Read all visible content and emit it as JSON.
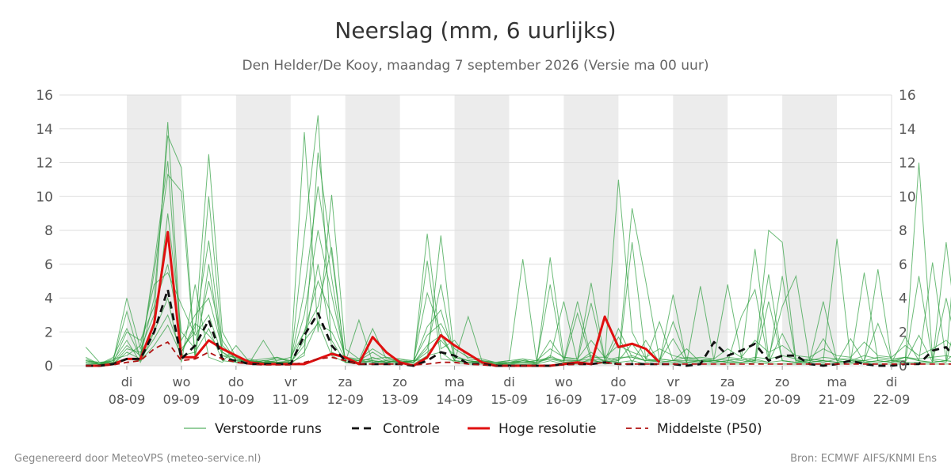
{
  "chart_data": {
    "type": "line",
    "title": "Neerslag (mm, 6 uurlijks)",
    "subtitle": "Den Helder/De Kooy, maandag  7 september 2026 (Versie ma 00 uur)",
    "ylim": [
      0,
      16
    ],
    "yticks": [
      0,
      2,
      4,
      6,
      8,
      10,
      12,
      14,
      16
    ],
    "x_step_label": "6 uur",
    "x_ticks": [
      {
        "day": "di",
        "date": "08-09"
      },
      {
        "day": "wo",
        "date": "09-09"
      },
      {
        "day": "do",
        "date": "10-09"
      },
      {
        "day": "vr",
        "date": "11-09"
      },
      {
        "day": "za",
        "date": "12-09"
      },
      {
        "day": "zo",
        "date": "13-09"
      },
      {
        "day": "ma",
        "date": "14-09"
      },
      {
        "day": "di",
        "date": "15-09"
      },
      {
        "day": "wo",
        "date": "16-09"
      },
      {
        "day": "do",
        "date": "17-09"
      },
      {
        "day": "vr",
        "date": "18-09"
      },
      {
        "day": "za",
        "date": "19-09"
      },
      {
        "day": "zo",
        "date": "20-09"
      },
      {
        "day": "ma",
        "date": "21-09"
      },
      {
        "day": "di",
        "date": "22-09"
      }
    ],
    "x_start": "2026-09-07 06:00",
    "x_end": "2026-09-22 00:00",
    "shaded_days": [
      "08-09",
      "10-09",
      "12-09",
      "14-09",
      "16-09",
      "18-09",
      "20-09"
    ],
    "grid": true,
    "legend_position": "bottom",
    "series": [
      {
        "name": "Hoge resolutie",
        "color": "#e01010",
        "style": "solid",
        "values": [
          0,
          0,
          0.1,
          0.4,
          0.4,
          2.5,
          7.9,
          0.5,
          0.5,
          1.5,
          1.0,
          0.6,
          0.2,
          0.1,
          0.1,
          0.1,
          0.1,
          0.4,
          0.7,
          0.5,
          0.1,
          1.7,
          0.8,
          0.2,
          0,
          0.5,
          1.8,
          1.2,
          0.7,
          0.2,
          0,
          0,
          0,
          0,
          0,
          0.1,
          0.2,
          0.1,
          2.9,
          1.1,
          1.3,
          1.0,
          0.2
        ]
      },
      {
        "name": "Controle",
        "color": "#111111",
        "style": "dashed",
        "values": [
          0,
          0,
          0.1,
          0.4,
          0.4,
          2.0,
          4.5,
          0.4,
          1.2,
          2.7,
          0.4,
          0.3,
          0.1,
          0.1,
          0.1,
          0.1,
          1.8,
          3.1,
          1.2,
          0.3,
          0.1,
          0.1,
          0.1,
          0.1,
          0,
          0.3,
          0.8,
          0.6,
          0.1,
          0.1,
          0,
          0,
          0,
          0,
          0,
          0.1,
          0.1,
          0.1,
          0.2,
          0.1,
          0.1,
          0.1,
          0.1,
          0.1,
          0,
          0.1,
          1.4,
          0.6,
          0.9,
          1.3,
          0.3,
          0.6,
          0.6,
          0.1,
          0,
          0.1,
          0.3,
          0.1,
          0,
          0,
          0.1,
          0.1,
          0.9,
          1.1,
          0.1,
          0,
          0,
          0,
          0.1
        ]
      },
      {
        "name": "Middelste (P50)",
        "color": "#b01010",
        "style": "dashed",
        "values": [
          0,
          0,
          0.05,
          0.2,
          0.3,
          1.0,
          1.4,
          0.3,
          0.4,
          0.8,
          0.4,
          0.2,
          0.1,
          0.05,
          0.05,
          0.05,
          0.2,
          0.4,
          0.5,
          0.3,
          0.1,
          0.1,
          0.1,
          0.1,
          0.05,
          0.1,
          0.2,
          0.2,
          0.1,
          0.05,
          0,
          0,
          0,
          0,
          0,
          0.05,
          0.1,
          0.1,
          0.2,
          0.1,
          0.1,
          0.1,
          0.1,
          0.1,
          0.1,
          0.1,
          0.1,
          0.1,
          0.1,
          0.1,
          0.1,
          0.1,
          0.1,
          0.1,
          0.1,
          0.1,
          0.1,
          0.1,
          0.1,
          0.1,
          0.1,
          0.1,
          0.1,
          0.1,
          0.1,
          0.1,
          0.1,
          0.2,
          0.1
        ]
      },
      {
        "name": "Verstoorde runs",
        "color": "#2e9e3e",
        "style": "thin",
        "ensemble": [
          [
            1.1,
            0.2,
            0.3,
            4.0,
            1.0,
            3.0,
            14.4,
            1.0,
            2.0,
            12.5,
            2.0,
            0.5,
            0.3,
            0.2,
            0.5,
            0.3,
            13.8,
            2.0,
            10.1,
            1.0,
            0.4,
            0.3,
            0.2,
            0.3,
            0.2,
            7.8,
            1.0,
            1.5,
            0.4,
            0.3,
            0.1,
            0.2,
            0.4,
            0.1,
            6.4,
            0.5,
            0.4,
            4.9,
            0.4,
            11.0,
            2.0,
            0.4,
            0.3,
            2.6,
            0.4,
            0.3,
            0.4,
            4.8,
            0.5,
            0.3,
            8.0,
            7.3,
            0.3,
            0.4,
            0.3,
            7.5,
            0.3,
            0.3,
            5.7,
            0.3,
            0.3,
            12.0,
            0.4,
            0.3,
            10.3,
            0.3,
            9.0,
            12.7,
            0.6
          ],
          [
            0.3,
            0.1,
            0.5,
            2.2,
            0.5,
            4.0,
            13.6,
            11.7,
            0.5,
            10.0,
            1.2,
            0.4,
            0.2,
            0.3,
            0.2,
            0.2,
            7.7,
            14.8,
            0.8,
            0.5,
            0.3,
            0.4,
            0.5,
            0.2,
            0.3,
            0.4,
            7.7,
            0.5,
            0.3,
            0.2,
            0.2,
            0.1,
            0.3,
            0.2,
            0.5,
            0.3,
            3.8,
            0.5,
            0.5,
            0.3,
            9.3,
            5.0,
            0.4,
            0.3,
            0.5,
            0.4,
            0.3,
            0.5,
            0.4,
            6.9,
            0.5,
            3.5,
            5.3,
            0.3,
            0.2,
            0.4,
            0.4,
            0.3,
            0.5,
            0.4,
            0.5,
            0.3,
            0.2,
            7.3,
            0.5,
            0.4,
            0.3,
            7.8,
            13.7
          ],
          [
            0.4,
            0.1,
            0.2,
            1.2,
            0.6,
            5.5,
            11.3,
            10.3,
            0.4,
            6.0,
            0.6,
            0.3,
            0.3,
            0.4,
            0.5,
            0.2,
            0.6,
            12.6,
            6.6,
            0.3,
            0.2,
            0.3,
            0.2,
            0.4,
            0.2,
            6.2,
            0.4,
            0.3,
            2.9,
            0.3,
            0.2,
            0.3,
            6.3,
            0.3,
            0.4,
            0.2,
            0.3,
            0.4,
            0.3,
            0.2,
            7.3,
            0.4,
            0.2,
            4.2,
            0.2,
            0.3,
            0.2,
            0.3,
            0.4,
            0.2,
            3.8,
            0.3,
            0.2,
            0.4,
            0.3,
            0.2,
            0.3,
            0.2,
            0.3,
            0.2,
            0.5,
            0.3,
            6.1,
            0.3,
            0.2,
            0.3,
            6.9,
            0.3,
            7.5
          ],
          [
            0.2,
            0.1,
            0.3,
            3.2,
            0.4,
            6.0,
            12.1,
            0.8,
            2.3,
            7.4,
            0.8,
            0.2,
            0.4,
            0.2,
            0.2,
            0.3,
            4.4,
            10.6,
            5.2,
            0.2,
            0.3,
            0.2,
            0.3,
            0.2,
            0.3,
            4.3,
            2.0,
            0.3,
            0.2,
            0.3,
            0.2,
            0.2,
            0.3,
            0.2,
            4.8,
            0.2,
            3.1,
            0.3,
            0.2,
            0.3,
            1.3,
            0.2,
            0.3,
            1.6,
            0.2,
            4.7,
            0.3,
            0.2,
            2.9,
            4.5,
            0.2,
            1.9,
            0.3,
            0.2,
            1.6,
            0.3,
            0.2,
            5.5,
            0.3,
            0.2,
            1.7,
            0.3,
            0.2,
            4.0,
            0.3,
            2.4,
            0.2,
            4.3,
            0.3
          ],
          [
            0.3,
            0.2,
            0.1,
            1.0,
            0.8,
            2.0,
            9.0,
            2.0,
            1.0,
            5.0,
            1.5,
            0.3,
            0.2,
            0.3,
            0.4,
            0.3,
            3.0,
            8.0,
            4.2,
            0.4,
            0.3,
            2.2,
            0.4,
            0.3,
            0.2,
            2.3,
            3.3,
            0.5,
            0.3,
            0.2,
            0.1,
            0.2,
            0.3,
            0.2,
            1.5,
            0.4,
            0.3,
            3.7,
            0.3,
            2.2,
            0.5,
            0.3,
            2.6,
            0.3,
            0.2,
            0.3,
            0.2,
            0.3,
            0.2,
            0.3,
            5.4,
            0.3,
            0.2,
            0.3,
            3.8,
            0.3,
            0.2,
            0.3,
            2.5,
            0.3,
            0.2,
            5.3,
            0.3,
            0.2,
            3.5,
            0.3,
            1.7,
            0.3,
            2.3
          ],
          [
            0.2,
            0.1,
            0.2,
            2.0,
            1.5,
            3.5,
            6.0,
            1.5,
            3.0,
            4.0,
            1.0,
            0.4,
            0.3,
            0.2,
            0.3,
            0.5,
            2.0,
            5.0,
            3.0,
            0.5,
            0.4,
            1.0,
            0.5,
            0.4,
            0.3,
            1.8,
            2.5,
            1.0,
            0.5,
            0.4,
            0.2,
            0.3,
            0.4,
            0.3,
            1.0,
            0.5,
            0.4,
            1.5,
            0.5,
            1.2,
            0.8,
            0.5,
            1.0,
            0.6,
            0.4,
            0.5,
            0.4,
            1.0,
            0.5,
            1.5,
            0.8,
            1.2,
            0.6,
            0.5,
            1.0,
            0.6,
            0.5,
            1.4,
            0.6,
            0.5,
            1.2,
            0.6,
            1.0,
            1.5,
            0.7,
            0.6,
            1.1,
            0.7,
            1.2
          ],
          [
            0.1,
            0.1,
            0.4,
            0.6,
            1.2,
            4.8,
            5.5,
            3.6,
            1.8,
            3.0,
            0.6,
            0.5,
            0.2,
            0.2,
            0.2,
            0.2,
            1.2,
            6.0,
            1.5,
            0.2,
            0.2,
            0.5,
            0.2,
            0.2,
            0.2,
            1.2,
            1.8,
            0.3,
            0.2,
            0.2,
            0.1,
            0.1,
            0.2,
            0.1,
            0.6,
            0.2,
            0.2,
            0.8,
            0.2,
            0.4,
            0.6,
            0.3,
            0.3,
            0.2,
            0.2,
            0.2,
            0.3,
            0.2,
            0.2,
            0.4,
            0.2,
            0.3,
            0.2,
            0.2,
            0.3,
            0.2,
            0.2,
            0.3,
            0.2,
            0.3,
            0.2,
            0.2,
            0.2,
            0.3,
            0.2,
            0.2,
            0.3,
            0.2,
            0.2
          ],
          [
            0.3,
            0.2,
            0.2,
            0.4,
            0.3,
            1.2,
            2.4,
            0.6,
            0.8,
            2.2,
            0.3,
            0.2,
            0.1,
            0.2,
            0.1,
            0.1,
            0.8,
            2.6,
            0.6,
            0.2,
            0.1,
            0.3,
            0.1,
            0.1,
            0.1,
            0.6,
            0.8,
            0.2,
            0.1,
            0.1,
            0.1,
            0.1,
            0.1,
            0.1,
            0.3,
            0.1,
            0.1,
            0.4,
            0.1,
            0.2,
            0.3,
            0.1,
            0.1,
            0.1,
            0.1,
            0.1,
            0.1,
            0.1,
            0.1,
            0.2,
            0.1,
            0.1,
            0.1,
            0.1,
            0.1,
            0.1,
            0.1,
            0.2,
            0.1,
            0.1,
            0.1,
            0.1,
            0.1,
            0.1,
            0.1,
            0.1,
            0.1,
            0.1,
            0.1
          ],
          [
            0.5,
            0.1,
            0.3,
            1.5,
            0.2,
            2.0,
            4.0,
            0.2,
            4.8,
            0.5,
            0.2,
            1.2,
            0.2,
            1.5,
            0.2,
            0.1,
            2.0,
            3.5,
            7.0,
            0.2,
            2.7,
            0.2,
            0.3,
            0.2,
            0.2,
            1.0,
            4.8,
            0.3,
            0.2,
            0.2,
            0.1,
            0.2,
            0.2,
            0.3,
            0.5,
            3.8,
            0.2,
            0.3,
            0.2,
            1.7,
            0.2,
            1.5,
            0.2,
            0.3,
            1.0,
            0.2,
            0.3,
            0.2,
            0.2,
            0.3,
            0.2,
            5.3,
            0.2,
            0.2,
            0.3,
            0.2,
            1.6,
            0.2,
            0.3,
            0.2,
            0.2,
            1.8,
            0.2,
            0.3,
            1.0,
            0.2,
            0.3,
            1.9,
            0.2
          ],
          [
            0.2,
            0.1,
            0.1,
            0.8,
            0.4,
            1.6,
            3.0,
            0.8,
            2.5,
            1.8,
            0.8,
            0.4,
            0.2,
            0.3,
            0.2,
            0.2,
            1.5,
            2.5,
            2.0,
            0.4,
            0.3,
            0.8,
            0.3,
            0.2,
            0.2,
            0.8,
            1.5,
            0.6,
            0.3,
            0.2,
            0.1,
            0.2,
            0.2,
            0.2,
            0.4,
            0.3,
            0.3,
            0.6,
            0.3,
            0.5,
            0.5,
            0.3,
            0.4,
            0.3,
            0.3,
            0.3,
            0.3,
            0.4,
            0.3,
            0.5,
            0.4,
            0.6,
            0.4,
            0.3,
            0.5,
            0.4,
            0.3,
            0.6,
            0.4,
            0.3,
            0.5,
            0.4,
            0.5,
            0.6,
            0.4,
            0.4,
            0.5,
            0.4,
            0.6
          ]
        ]
      }
    ],
    "legend": [
      "Verstoorde runs",
      "Controle",
      "Hoge resolutie",
      "Middelste (P50)"
    ]
  },
  "footer": {
    "left": "Gegenereerd door MeteoVPS (meteo-service.nl)",
    "right": "Bron: ECMWF AIFS/KNMI Ens"
  },
  "colors": {
    "grid": "#dddddd",
    "shade": "#ececec",
    "ensemble": "#2e9e3e"
  }
}
